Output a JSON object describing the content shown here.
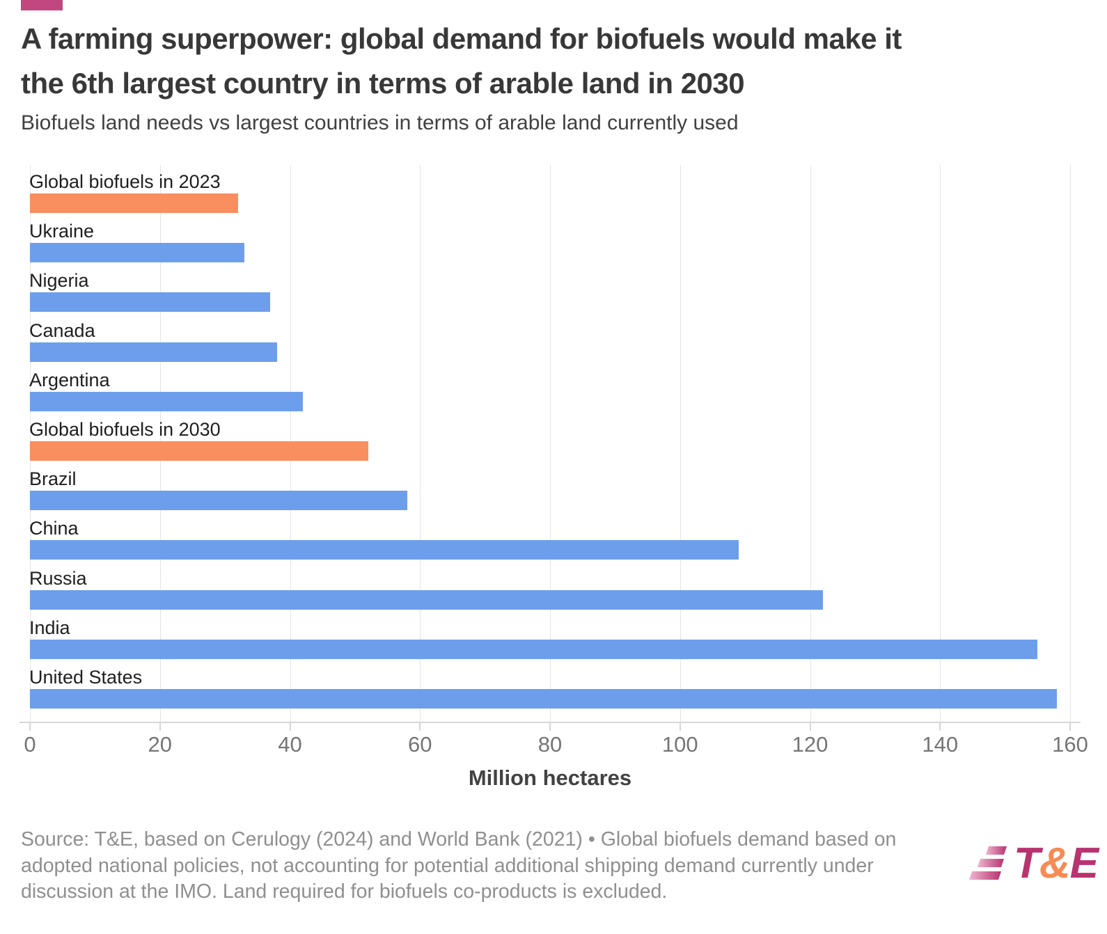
{
  "header": {
    "title_line1": "A farming superpower: global demand for biofuels would make it",
    "title_line2": "the 6th largest country in terms of arable land in 2030",
    "subtitle": "Biofuels land needs vs largest countries in terms of arable land currently used"
  },
  "chart_data": {
    "type": "bar",
    "orientation": "horizontal",
    "title": "A farming superpower: global demand for biofuels would make it the 6th largest country in terms of arable land in 2030",
    "subtitle": "Biofuels land needs vs largest countries in terms of arable land currently used",
    "xlabel": "Million hectares",
    "ylabel": "",
    "xlim": [
      0,
      160
    ],
    "xticks": [
      0,
      20,
      40,
      60,
      80,
      100,
      120,
      140,
      160
    ],
    "grid": true,
    "legend": "none",
    "categories": [
      "Global biofuels in 2023",
      "Ukraine",
      "Nigeria",
      "Canada",
      "Argentina",
      "Global biofuels in 2030",
      "Brazil",
      "China",
      "Russia",
      "India",
      "United States"
    ],
    "values": [
      32,
      33,
      37,
      38,
      42,
      52,
      58,
      109,
      122,
      155,
      158
    ],
    "bar_colors": [
      "#F98E5E",
      "#6D9EEB",
      "#6D9EEB",
      "#6D9EEB",
      "#6D9EEB",
      "#F98E5E",
      "#6D9EEB",
      "#6D9EEB",
      "#6D9EEB",
      "#6D9EEB",
      "#6D9EEB"
    ],
    "highlight_series": "Global biofuels (orange)",
    "default_series": "Countries' arable land (blue)"
  },
  "footer": {
    "source_text": "Source: T&E, based on Cerulogy (2024) and World Bank (2021) • Global biofuels demand based on adopted national policies, not accounting for potential additional shipping demand currently under discussion at the IMO. Land required for biofuels co-products is excluded.",
    "logo_t": "T",
    "logo_amp": "&",
    "logo_e": "E"
  },
  "colors": {
    "bar_blue": "#6D9EEB",
    "bar_orange": "#F98E5E",
    "tag_pink": "#C2477E",
    "logo_magenta": "#B8336F",
    "logo_orange": "#F78B53",
    "grid": "#E4E4E4",
    "axis": "#D6D6D6",
    "tick_text": "#757575",
    "source_text": "#8F8F8F",
    "title_text": "#383838"
  }
}
